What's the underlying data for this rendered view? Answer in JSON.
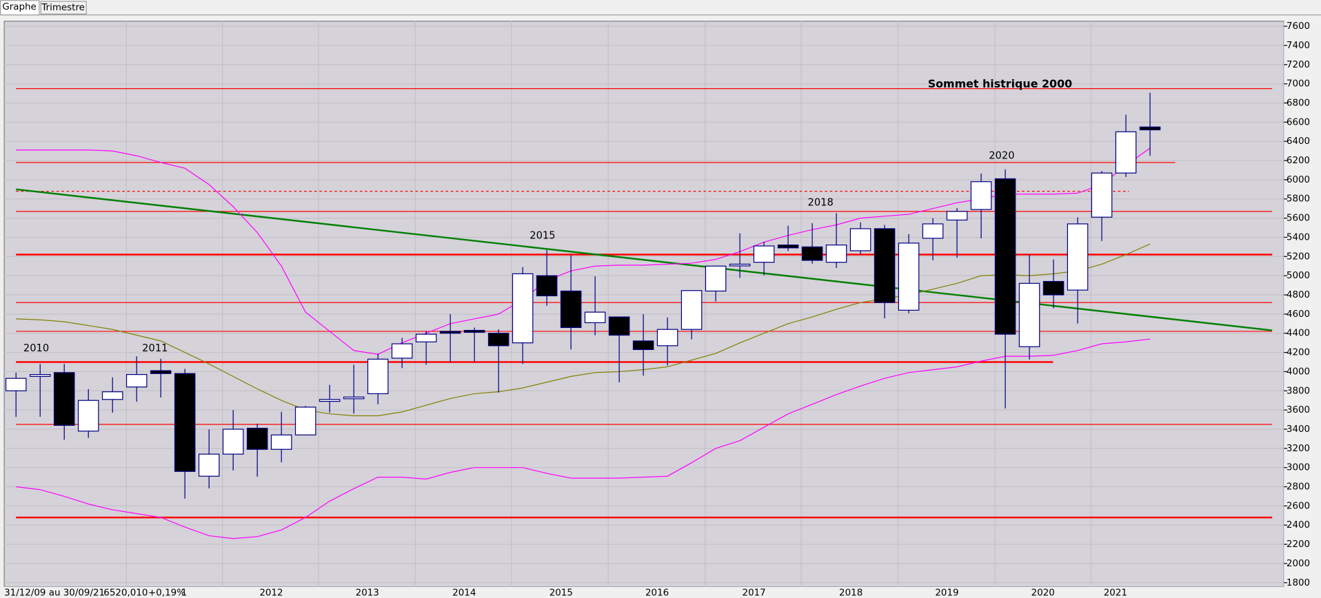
{
  "tabs": [
    "Graphe",
    "Trimestre"
  ],
  "status": [
    "31/12/09 au 30/09/21",
    "6520,010",
    "+0,19%",
    "1"
  ],
  "chart_data": {
    "type": "candlestick",
    "up_color": "#ffffff",
    "down_color": "#000000",
    "wick_color": "#000080",
    "background": "#d5d2d9",
    "open": [
      3800,
      3950,
      3990,
      3380,
      3710,
      3840,
      4010,
      3980,
      2910,
      3140,
      3410,
      3190,
      3340,
      3690,
      3725,
      3770,
      4140,
      4310,
      4420,
      4430,
      4400,
      4300,
      5000,
      4840,
      4510,
      4570,
      4320,
      4270,
      4440,
      4840,
      5110,
      5140,
      5320,
      5300,
      5140,
      5260,
      5490,
      4640,
      5390,
      5580,
      5690,
      6010,
      4260,
      4940,
      4850,
      5610,
      6070,
      6550
    ],
    "high": [
      3990,
      4080,
      4080,
      3818,
      3941,
      4160,
      4134,
      4029,
      3397,
      3599,
      3458,
      3581,
      3642,
      3862,
      4072,
      4187,
      4353,
      4424,
      4599,
      4459,
      4441,
      5090,
      5266,
      5213,
      4994,
      4564,
      4599,
      4564,
      4845,
      5100,
      5441,
      5354,
      5520,
      5547,
      5652,
      5555,
      5529,
      5433,
      5599,
      5705,
      6064,
      6108,
      5222,
      5169,
      5608,
      6091,
      6679,
      6907
    ],
    "low": [
      3528,
      3530,
      3290,
      3309,
      3572,
      3686,
      3730,
      2677,
      2783,
      2970,
      2905,
      3055,
      3335,
      3572,
      3563,
      3660,
      4037,
      4072,
      4099,
      4099,
      3783,
      4081,
      4687,
      4230,
      4379,
      3888,
      3958,
      4064,
      4336,
      4731,
      4976,
      5003,
      5257,
      5125,
      5081,
      5222,
      4555,
      4608,
      5160,
      5187,
      5389,
      3616,
      4125,
      4660,
      4502,
      5362,
      6029,
      6249
    ],
    "close": [
      3930,
      3970,
      3440,
      3700,
      3790,
      3970,
      3980,
      2960,
      3140,
      3400,
      3190,
      3340,
      3630,
      3710,
      3735,
      4130,
      4290,
      4390,
      4400,
      4410,
      4270,
      5020,
      4790,
      4460,
      4620,
      4380,
      4230,
      4440,
      4845,
      5100,
      5120,
      5310,
      5290,
      5160,
      5320,
      5490,
      4720,
      5340,
      5540,
      5670,
      5980,
      4390,
      4920,
      4800,
      5540,
      6070,
      6500,
      6520.01
    ],
    "lines": [
      {
        "color": "#ff00ff",
        "values": [
          6310,
          6310,
          6310,
          6310,
          6300,
          6250,
          6180,
          6120,
          5950,
          5720,
          5450,
          5100,
          4620,
          4420,
          4220,
          4180,
          4300,
          4400,
          4500,
          4550,
          4600,
          4750,
          4950,
          5050,
          5100,
          5110,
          5110,
          5120,
          5130,
          5170,
          5250,
          5350,
          5420,
          5480,
          5530,
          5600,
          5620,
          5640,
          5700,
          5760,
          5800,
          5850,
          5850,
          5850,
          5860,
          5950,
          6150,
          6330
        ]
      },
      {
        "color": "#ff00ff",
        "values": [
          2800,
          2770,
          2700,
          2620,
          2560,
          2520,
          2480,
          2380,
          2290,
          2260,
          2280,
          2350,
          2480,
          2650,
          2780,
          2900,
          2900,
          2880,
          2950,
          3000,
          3000,
          3000,
          2940,
          2890,
          2890,
          2890,
          2900,
          2910,
          3050,
          3200,
          3280,
          3420,
          3560,
          3660,
          3760,
          3850,
          3930,
          3990,
          4020,
          4050,
          4110,
          4160,
          4160,
          4170,
          4220,
          4290,
          4310,
          4340
        ]
      },
      {
        "color": "#808000",
        "values": [
          4550,
          4540,
          4520,
          4480,
          4440,
          4380,
          4320,
          4200,
          4080,
          3950,
          3820,
          3700,
          3600,
          3560,
          3540,
          3540,
          3580,
          3650,
          3720,
          3770,
          3790,
          3830,
          3890,
          3950,
          3990,
          4000,
          4020,
          4050,
          4120,
          4190,
          4300,
          4400,
          4500,
          4570,
          4650,
          4720,
          4760,
          4800,
          4860,
          4920,
          5000,
          5010,
          5000,
          5020,
          5050,
          5120,
          5220,
          5330
        ]
      }
    ],
    "levels": [
      {
        "value": 6950,
        "color": "#ff0000",
        "width": 1
      },
      {
        "value": 6180,
        "color": "#ff0000",
        "width": 1
      },
      {
        "value": 5880,
        "color": "#ff0000",
        "width": 1,
        "dashed": true
      },
      {
        "value": 5670,
        "color": "#ff0000",
        "width": 1
      },
      {
        "value": 5220,
        "color": "#ff0000",
        "width": 2
      },
      {
        "value": 4720,
        "color": "#ff0000",
        "width": 1
      },
      {
        "value": 4420,
        "color": "#ff0000",
        "width": 1
      },
      {
        "value": 4100,
        "color": "#ff0000",
        "width": 2
      },
      {
        "value": 3450,
        "color": "#ff0000",
        "width": 1
      },
      {
        "value": 2480,
        "color": "#ff0000",
        "width": 2
      }
    ],
    "trendline": {
      "color": "#008000",
      "values": [
        5900,
        4430
      ]
    },
    "annotations": [
      "2010",
      "2011",
      "2015",
      "2018",
      "2020"
    ],
    "highlight": "Sommet histrique 2000",
    "x_labels": [
      "2012",
      "2013",
      "2014",
      "2015",
      "2016",
      "2017",
      "2018",
      "2019",
      "2020",
      "2021"
    ],
    "ylim": [
      1800,
      7600
    ],
    "yticks": [
      1800,
      2000,
      2200,
      2400,
      2600,
      2800,
      3000,
      3200,
      3400,
      3600,
      3800,
      4000,
      4200,
      4400,
      4600,
      4800,
      5000,
      5200,
      5400,
      5600,
      5800,
      6000,
      6200,
      6400,
      6600,
      6800,
      7000,
      7200,
      7400,
      7600
    ],
    "grid": true
  }
}
